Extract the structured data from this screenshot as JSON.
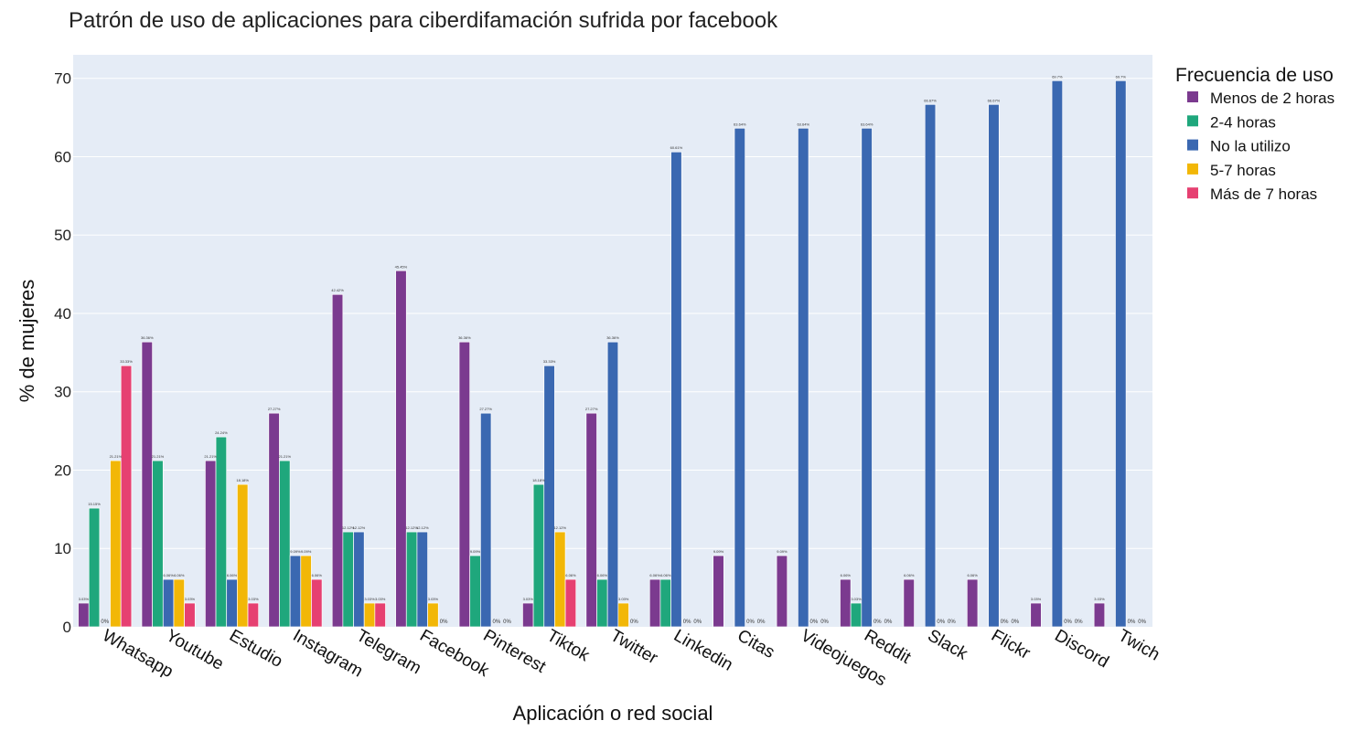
{
  "chart_data": {
    "type": "bar",
    "title": "Patrón de uso de aplicaciones para ciberdifamación sufrida por facebook",
    "xlabel": "Aplicación o red social",
    "ylabel": "% de mujeres",
    "ylim": [
      0,
      73
    ],
    "yticks": [
      "0",
      "10",
      "20",
      "30",
      "40",
      "50",
      "60",
      "70"
    ],
    "grid": true,
    "legend_title": "Frecuencia de uso",
    "legend_position": "right",
    "categories": [
      "Whatsapp",
      "Youtube",
      "Estudio",
      "Instagram",
      "Telegram",
      "Facebook",
      "Pinterest",
      "Tiktok",
      "Twitter",
      "Linkedin",
      "Citas",
      "Videojuegos",
      "Reddit",
      "Slack",
      "Flickr",
      "Discord",
      "Twich"
    ],
    "series": [
      {
        "name": "Menos de 2 horas",
        "color": "#7b3a8f",
        "values": [
          3.03,
          36.36,
          21.21,
          27.27,
          42.42,
          45.45,
          36.36,
          3.03,
          27.27,
          6.06,
          9.09,
          9.09,
          6.06,
          6.06,
          6.06,
          3.03,
          3.03
        ],
        "labels": [
          "3.03%",
          "36.36%",
          "21.21%",
          "27.27%",
          "42.42%",
          "45.45%",
          "36.36%",
          "3.03%",
          "27.27%",
          "6.06%",
          "9.09%",
          "9.09%",
          "6.06%",
          "6.06%",
          "6.06%",
          "3.03%",
          "3.03%"
        ]
      },
      {
        "name": "2-4 horas",
        "color": "#1fa77c",
        "values": [
          15.15,
          21.21,
          24.24,
          21.21,
          12.12,
          12.12,
          9.09,
          18.18,
          6.06,
          6.06,
          null,
          null,
          3.03,
          null,
          null,
          null,
          null
        ],
        "labels": [
          "15.15%",
          "21.21%",
          "24.24%",
          "21.21%",
          "12.12%",
          "12.12%",
          "9.09%",
          "18.18%",
          "6.06%",
          "6.06%",
          "",
          "",
          "3.03%",
          "",
          "",
          "",
          ""
        ]
      },
      {
        "name": "No la utilizo",
        "color": "#3a68b1",
        "values": [
          0,
          6.06,
          6.06,
          9.09,
          12.12,
          12.12,
          27.27,
          33.33,
          36.36,
          60.61,
          63.64,
          63.64,
          63.64,
          66.67,
          66.67,
          69.7,
          69.7
        ],
        "labels": [
          "0%",
          "6.06%",
          "6.06%",
          "9.09%",
          "12.12%",
          "12.12%",
          "27.27%",
          "33.33%",
          "36.36%",
          "60.61%",
          "63.64%",
          "63.64%",
          "63.64%",
          "66.67%",
          "66.67%",
          "69.7%",
          "69.7%"
        ]
      },
      {
        "name": "5-7 horas",
        "color": "#f2b707",
        "values": [
          21.21,
          6.06,
          18.18,
          9.09,
          3.03,
          3.03,
          0,
          12.12,
          3.03,
          0,
          0,
          0,
          0,
          0,
          0,
          0,
          0
        ],
        "labels": [
          "21.21%",
          "6.06%",
          "18.18%",
          "9.09%",
          "3.03%",
          "3.03%",
          "0%",
          "12.12%",
          "3.03%",
          "0%",
          "0%",
          "0%",
          "0%",
          "0%",
          "0%",
          "0%",
          "0%"
        ]
      },
      {
        "name": "Más de 7 horas",
        "color": "#e64071",
        "values": [
          33.33,
          3.03,
          3.03,
          6.06,
          3.03,
          0,
          0,
          6.06,
          0,
          0,
          0,
          0,
          0,
          0,
          0,
          0,
          0
        ],
        "labels": [
          "33.33%",
          "3.03%",
          "3.03%",
          "6.06%",
          "3.03%",
          "0%",
          "0%",
          "6.06%",
          "0%",
          "0%",
          "0%",
          "0%",
          "0%",
          "0%",
          "0%",
          "0%",
          "0%"
        ]
      }
    ]
  }
}
